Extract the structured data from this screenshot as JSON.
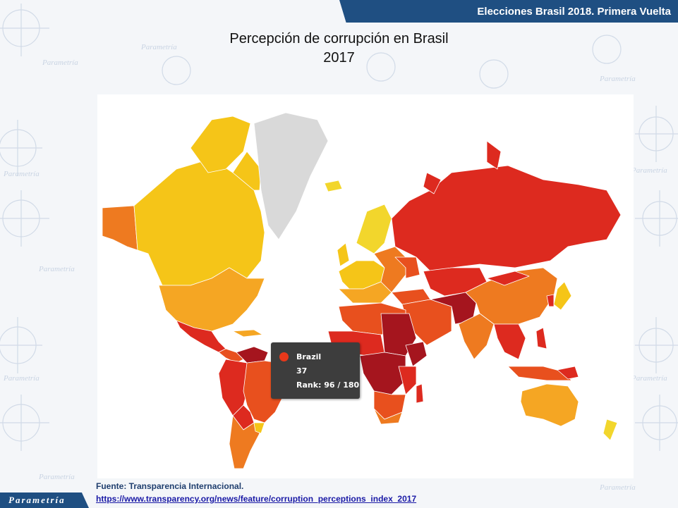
{
  "header": {
    "banner_text": "Elecciones Brasil 2018. Primera Vuelta"
  },
  "title": {
    "line1": "Percepción de corrupción en Brasil",
    "line2": "2017"
  },
  "tooltip": {
    "country": "Brazil",
    "score": "37",
    "rank": "Rank: 96 / 180"
  },
  "footer": {
    "source": "Fuente: Transparencia Internacional.",
    "link": "https://www.transparency.org/news/feature/corruption_perceptions_index_2017"
  },
  "logo": {
    "text": "Parametría"
  },
  "watermark": {
    "text": "Parametría"
  },
  "colors": {
    "header_bg": "#1f4f82",
    "cleanest": "#f2d62c",
    "clean": "#f5c518",
    "mid": "#f5a623",
    "orange": "#ee7a20",
    "red_orange": "#e8501e",
    "red": "#dd2a1f",
    "dark_red": "#a5151e",
    "no_data": "#d9d9d9",
    "brazil_marker": "#e8381a"
  }
}
